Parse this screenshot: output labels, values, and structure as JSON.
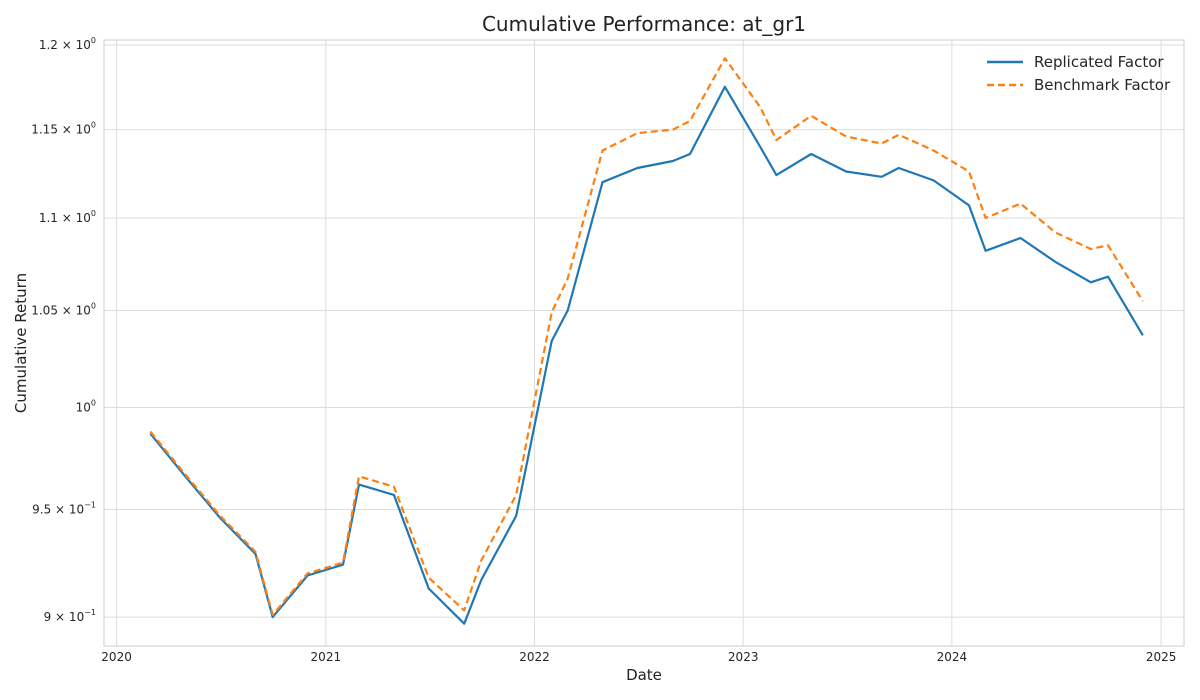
{
  "chart_data": {
    "type": "line",
    "title": "Cumulative Performance: at_gr1",
    "xlabel": "Date",
    "ylabel": "Cumulative Return",
    "yscale": "log",
    "xlim": [
      "2019-12-10",
      "2025-02-10"
    ],
    "ylim": [
      0.887,
      1.203
    ],
    "x_ticks": [
      "2020",
      "2021",
      "2022",
      "2023",
      "2024",
      "2025"
    ],
    "y_ticks": [
      {
        "value": 0.9,
        "mantissa": "9",
        "base": "10",
        "exp": "−1"
      },
      {
        "value": 0.95,
        "mantissa": "9.5",
        "base": "10",
        "exp": "−1"
      },
      {
        "value": 1.0,
        "mantissa": "",
        "base": "10",
        "exp": "0"
      },
      {
        "value": 1.05,
        "mantissa": "1.05",
        "base": "10",
        "exp": "0"
      },
      {
        "value": 1.1,
        "mantissa": "1.1",
        "base": "10",
        "exp": "0"
      },
      {
        "value": 1.15,
        "mantissa": "1.15",
        "base": "10",
        "exp": "0"
      },
      {
        "value": 1.2,
        "mantissa": "1.2",
        "base": "10",
        "exp": "0"
      }
    ],
    "grid": true,
    "legend_position": "top-right",
    "x": [
      "2020-02-29",
      "2020-04-30",
      "2020-06-30",
      "2020-08-31",
      "2020-09-30",
      "2020-11-30",
      "2021-01-31",
      "2021-02-28",
      "2021-04-30",
      "2021-06-30",
      "2021-08-31",
      "2021-09-30",
      "2021-11-30",
      "2022-01-31",
      "2022-02-28",
      "2022-04-30",
      "2022-06-30",
      "2022-08-31",
      "2022-09-30",
      "2022-11-30",
      "2023-01-31",
      "2023-02-28",
      "2023-04-30",
      "2023-06-30",
      "2023-08-31",
      "2023-09-30",
      "2023-11-30",
      "2024-01-31",
      "2024-02-29",
      "2024-04-30",
      "2024-06-30",
      "2024-08-31",
      "2024-09-30",
      "2024-11-30"
    ],
    "series": [
      {
        "name": "Replicated Factor",
        "color": "#1f77b4",
        "style": "solid",
        "values": [
          0.987,
          0.966,
          0.946,
          0.929,
          0.9,
          0.919,
          0.924,
          0.962,
          0.957,
          0.913,
          0.897,
          0.917,
          0.947,
          1.034,
          1.05,
          1.12,
          1.128,
          1.132,
          1.136,
          1.175,
          1.14,
          1.124,
          1.136,
          1.126,
          1.123,
          1.128,
          1.121,
          1.107,
          1.082,
          1.089,
          1.076,
          1.065,
          1.068,
          1.037
        ]
      },
      {
        "name": "Benchmark Factor",
        "color": "#ff7f0e",
        "style": "dashed",
        "values": [
          0.988,
          0.967,
          0.947,
          0.93,
          0.901,
          0.92,
          0.925,
          0.966,
          0.961,
          0.918,
          0.903,
          0.926,
          0.957,
          1.049,
          1.067,
          1.138,
          1.148,
          1.15,
          1.155,
          1.192,
          1.163,
          1.144,
          1.158,
          1.146,
          1.142,
          1.147,
          1.138,
          1.126,
          1.1,
          1.108,
          1.092,
          1.083,
          1.085,
          1.055
        ]
      }
    ]
  }
}
